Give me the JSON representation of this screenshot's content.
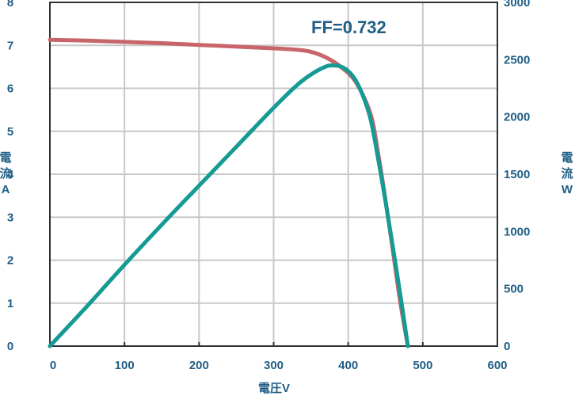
{
  "chart_data": {
    "type": "line",
    "annotation": "FF=0.732",
    "xlabel": "電圧V",
    "ylabel_left": [
      "電",
      "流",
      "A"
    ],
    "ylabel_right": [
      "電",
      "流",
      "W"
    ],
    "xlim": [
      0,
      600
    ],
    "ylim_left": [
      0,
      8
    ],
    "ylim_right": [
      0,
      3000
    ],
    "x_ticks": [
      0,
      100,
      200,
      300,
      400,
      500,
      600
    ],
    "y_ticks_left": [
      0,
      1,
      2,
      3,
      4,
      5,
      6,
      7,
      8
    ],
    "y_ticks_right": [
      0,
      500,
      1000,
      1500,
      2000,
      2500,
      3000
    ],
    "grid": true,
    "series": [
      {
        "axis": "left",
        "color": "#c8656a",
        "x": [
          0,
          50,
          100,
          150,
          200,
          250,
          300,
          330,
          350,
          370,
          390,
          410,
          430,
          440,
          450,
          460,
          470,
          480
        ],
        "y": [
          7.13,
          7.11,
          7.08,
          7.05,
          7.01,
          6.97,
          6.93,
          6.9,
          6.85,
          6.72,
          6.5,
          6.15,
          5.4,
          4.5,
          3.4,
          2.2,
          1.0,
          0.0
        ]
      },
      {
        "axis": "right",
        "color": "#159a94",
        "x": [
          0,
          50,
          100,
          150,
          200,
          250,
          300,
          330,
          350,
          370,
          380,
          390,
          400,
          410,
          420,
          430,
          440,
          450,
          460,
          470,
          480
        ],
        "y": [
          0,
          350,
          710,
          1060,
          1400,
          1740,
          2080,
          2270,
          2370,
          2440,
          2450,
          2440,
          2400,
          2320,
          2180,
          1980,
          1640,
          1260,
          860,
          440,
          0
        ]
      }
    ]
  }
}
